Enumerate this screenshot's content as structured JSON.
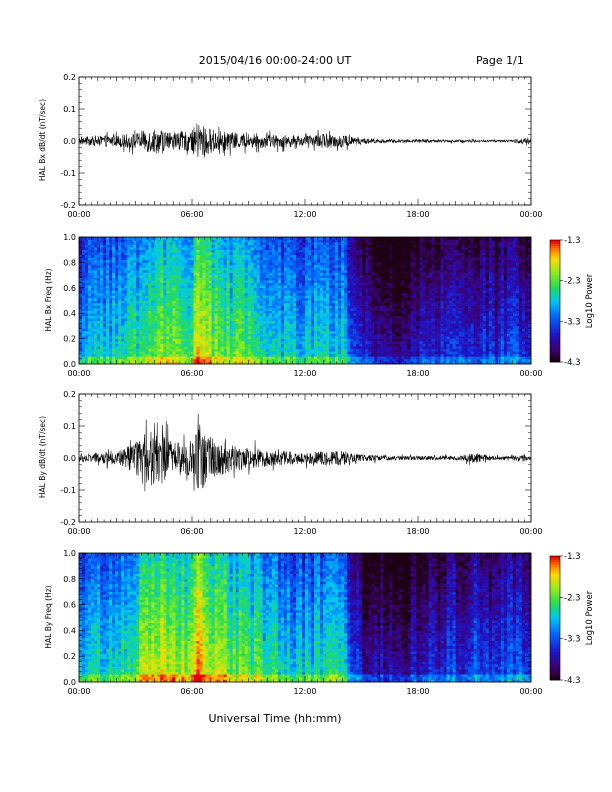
{
  "header": {
    "title": "2015/04/16  00:00-24:00 UT",
    "page": "Page 1/1"
  },
  "xlabel": "Universal Time (hh:mm)",
  "time_ticks": [
    "00:00",
    "06:00",
    "12:00",
    "18:00",
    "00:00"
  ],
  "colorbar": {
    "label": "Log10 Power",
    "ticks": [
      "-1.3",
      "-2.3",
      "-3.3",
      "-4.3"
    ],
    "range": [
      -4.3,
      -1.3
    ]
  },
  "chart_data": [
    {
      "type": "line",
      "ylabel": "HAL Bx dB/dt (nT/sec)",
      "x_range_hours": [
        0,
        24
      ],
      "ylim": [
        -0.2,
        0.2
      ],
      "yticks": [
        "0.2",
        "0.1",
        "0.0",
        "-0.1",
        "-0.2"
      ],
      "envelope": {
        "hours": [
          0,
          1,
          2,
          3,
          3.5,
          4,
          5,
          6,
          6.3,
          7,
          8,
          9,
          10,
          11,
          12,
          13,
          14,
          14.5,
          15,
          16,
          17,
          18,
          19,
          20,
          21,
          22,
          23,
          23.5,
          24
        ],
        "amplitude": [
          0.02,
          0.03,
          0.035,
          0.045,
          0.06,
          0.075,
          0.05,
          0.06,
          0.11,
          0.07,
          0.05,
          0.045,
          0.04,
          0.035,
          0.03,
          0.04,
          0.04,
          0.025,
          0.018,
          0.012,
          0.01,
          0.01,
          0.008,
          0.008,
          0.008,
          0.006,
          0.006,
          0.018,
          0.01
        ]
      }
    },
    {
      "type": "heatmap",
      "ylabel": "HAL Bx Freq (Hz)",
      "x_range_hours": [
        0,
        24
      ],
      "ylim": [
        0.0,
        1.0
      ],
      "yticks": [
        "1.0",
        "0.8",
        "0.6",
        "0.4",
        "0.2",
        "0.0"
      ],
      "power_profile": {
        "hours": [
          0,
          1,
          2,
          3,
          3.5,
          4,
          5,
          6,
          6.3,
          7,
          8,
          9,
          10,
          11,
          12,
          13,
          14,
          14.5,
          15,
          16,
          17,
          18,
          19,
          20,
          21,
          22,
          23,
          24
        ],
        "log_power": [
          -3.2,
          -3.1,
          -3.0,
          -2.8,
          -2.6,
          -2.4,
          -2.5,
          -2.6,
          -1.8,
          -2.4,
          -2.6,
          -2.7,
          -2.8,
          -3.0,
          -3.0,
          -2.9,
          -3.0,
          -3.6,
          -3.9,
          -4.0,
          -4.1,
          -4.0,
          -3.9,
          -3.8,
          -3.8,
          -3.8,
          -3.7,
          -3.8
        ]
      }
    },
    {
      "type": "line",
      "ylabel": "HAL By dB/dt (nT/sec)",
      "x_range_hours": [
        0,
        24
      ],
      "ylim": [
        -0.2,
        0.2
      ],
      "yticks": [
        "0.2",
        "0.1",
        "0.0",
        "-0.1",
        "-0.2"
      ],
      "envelope": {
        "hours": [
          0,
          1,
          2,
          2.5,
          3,
          3.5,
          4,
          5,
          6,
          6.3,
          7,
          8,
          9,
          10,
          11,
          12,
          13,
          14,
          14.5,
          15,
          16,
          17,
          18,
          19,
          20,
          21,
          22,
          23,
          23.5,
          24
        ],
        "amplitude": [
          0.025,
          0.03,
          0.04,
          0.06,
          0.09,
          0.14,
          0.17,
          0.09,
          0.1,
          0.2,
          0.12,
          0.08,
          0.06,
          0.05,
          0.04,
          0.035,
          0.04,
          0.045,
          0.03,
          0.02,
          0.015,
          0.012,
          0.012,
          0.012,
          0.012,
          0.03,
          0.012,
          0.01,
          0.025,
          0.012
        ]
      }
    },
    {
      "type": "heatmap",
      "ylabel": "HAL By Freq (Hz)",
      "x_range_hours": [
        0,
        24
      ],
      "ylim": [
        0.0,
        1.0
      ],
      "yticks": [
        "1.0",
        "0.8",
        "0.6",
        "0.4",
        "0.2",
        "0.0"
      ],
      "power_profile": {
        "hours": [
          0,
          1,
          2,
          3,
          3.5,
          4,
          5,
          6,
          6.3,
          7,
          8,
          9,
          10,
          11,
          12,
          13,
          14,
          14.5,
          15,
          16,
          17,
          18,
          19,
          20,
          21,
          22,
          23,
          24
        ],
        "log_power": [
          -3.1,
          -3.0,
          -2.9,
          -2.7,
          -2.3,
          -2.1,
          -2.3,
          -2.4,
          -1.6,
          -2.2,
          -2.5,
          -2.6,
          -2.8,
          -3.0,
          -3.0,
          -2.9,
          -3.0,
          -3.6,
          -3.9,
          -4.0,
          -4.1,
          -4.0,
          -3.8,
          -3.7,
          -3.6,
          -3.7,
          -3.6,
          -3.7
        ]
      }
    }
  ]
}
